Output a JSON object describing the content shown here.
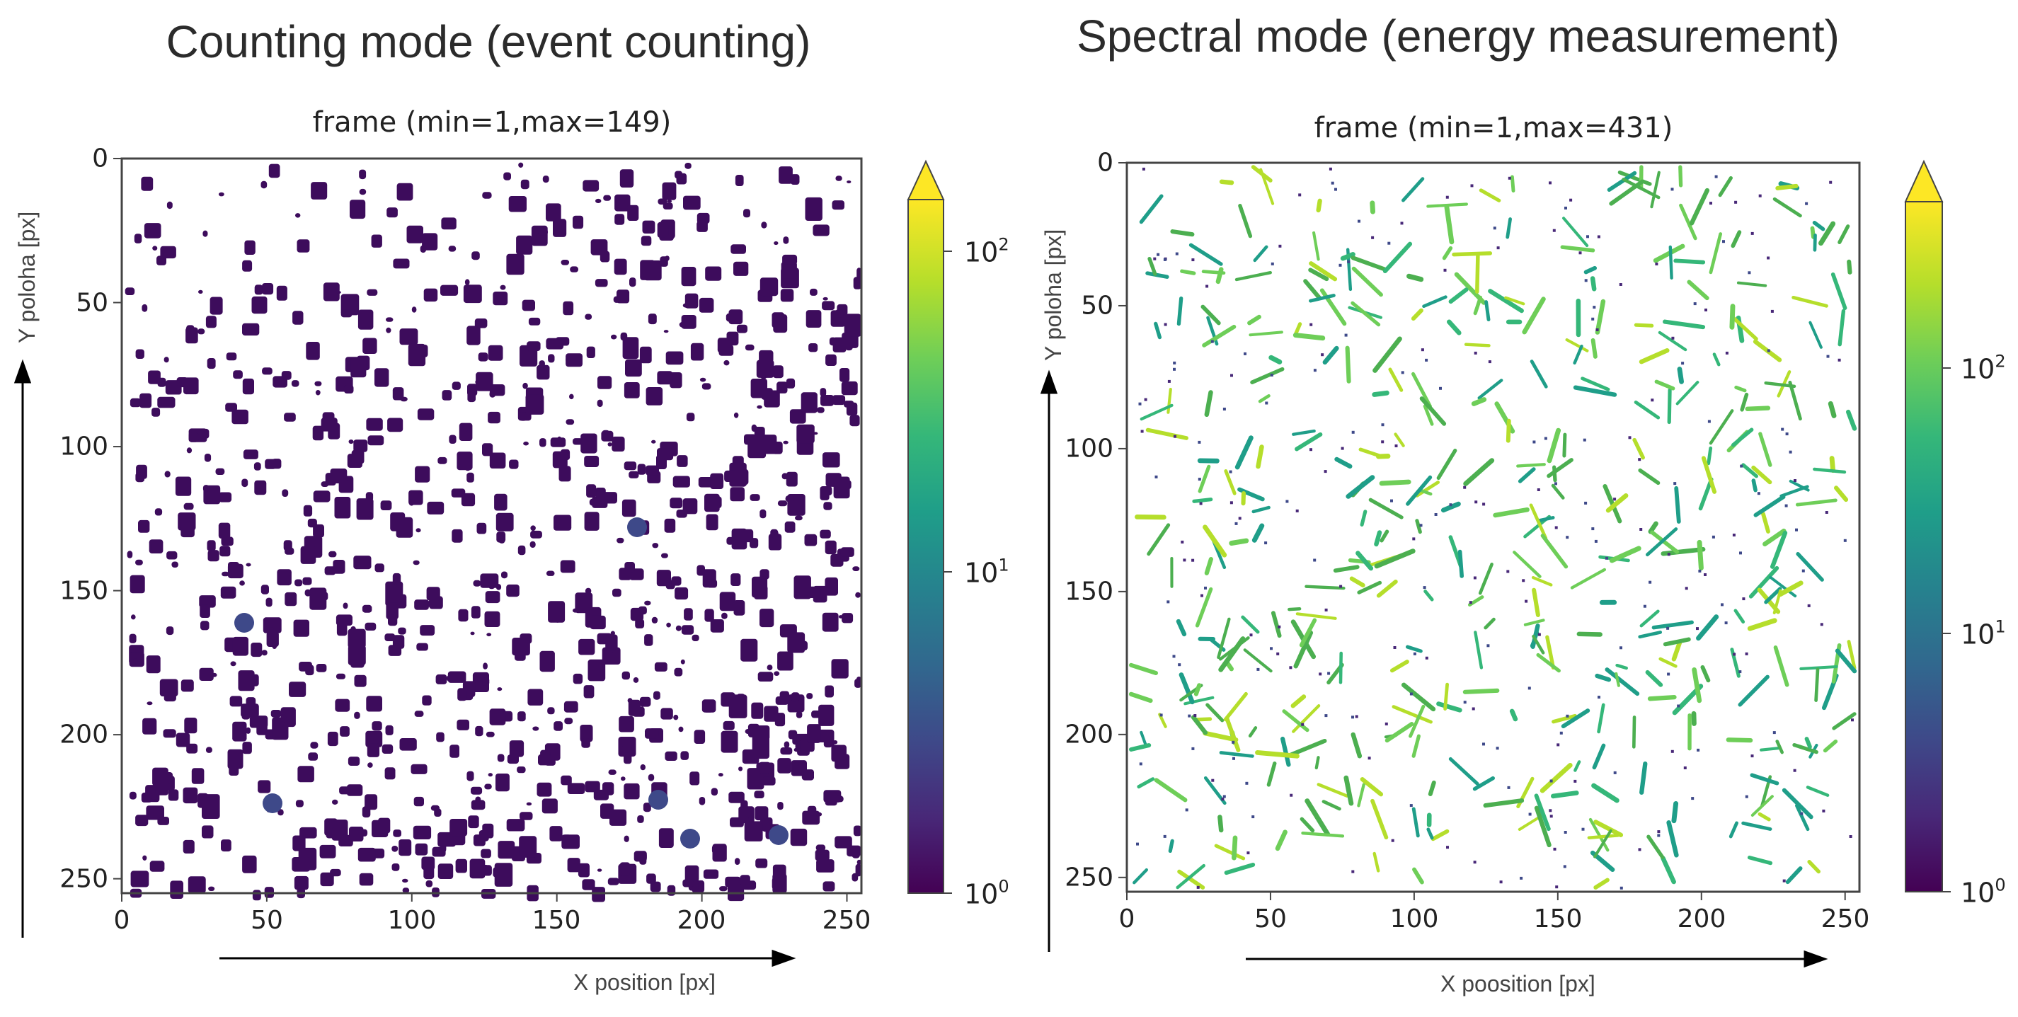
{
  "chart_data": [
    {
      "type": "heatmap",
      "heading": "Counting mode (event counting)",
      "title": "frame (min=1,max=149)",
      "xlabel": "X position [px]",
      "ylabel": "Y poloha [px]",
      "xlim": [
        0,
        255
      ],
      "ylim": [
        255,
        0
      ],
      "xticks": [
        "0",
        "50",
        "100",
        "150",
        "200",
        "250"
      ],
      "yticks": [
        "0",
        "50",
        "100",
        "150",
        "200",
        "250"
      ],
      "colorbar": {
        "scale": "log",
        "colormap": "viridis",
        "range": [
          1,
          149
        ],
        "extend": "max",
        "tick_bases": [
          "10",
          "10",
          "10"
        ],
        "tick_exponents": [
          "0",
          "1",
          "2"
        ]
      },
      "min": 1,
      "max": 149,
      "description_values": {
        "dominant_value": 1,
        "hotspot_value": 5
      }
    },
    {
      "type": "heatmap",
      "heading": "Spectral mode (energy measurement)",
      "title": "frame (min=1,max=431)",
      "xlabel": "X poosition [px]",
      "ylabel": "Y poloha [px]",
      "xlim": [
        0,
        255
      ],
      "ylim": [
        255,
        0
      ],
      "xticks": [
        "0",
        "50",
        "100",
        "150",
        "200",
        "250"
      ],
      "yticks": [
        "0",
        "50",
        "100",
        "150",
        "200",
        "250"
      ],
      "colorbar": {
        "scale": "log",
        "colormap": "viridis",
        "range": [
          1,
          431
        ],
        "extend": "max",
        "tick_bases": [
          "10",
          "10",
          "10"
        ],
        "tick_exponents": [
          "0",
          "1",
          "2"
        ]
      },
      "min": 1,
      "max": 431,
      "description_values": {
        "dominant_value": 60,
        "hotspot_value": 250
      }
    }
  ],
  "colors": {
    "viridis": [
      "#440154",
      "#482878",
      "#3e4989",
      "#31688e",
      "#26828e",
      "#1f9e89",
      "#35b779",
      "#6ece58",
      "#b5de2b",
      "#fde725"
    ],
    "counting_dots": "#3d0c5c",
    "spectral_tracks": "#4caf50"
  }
}
